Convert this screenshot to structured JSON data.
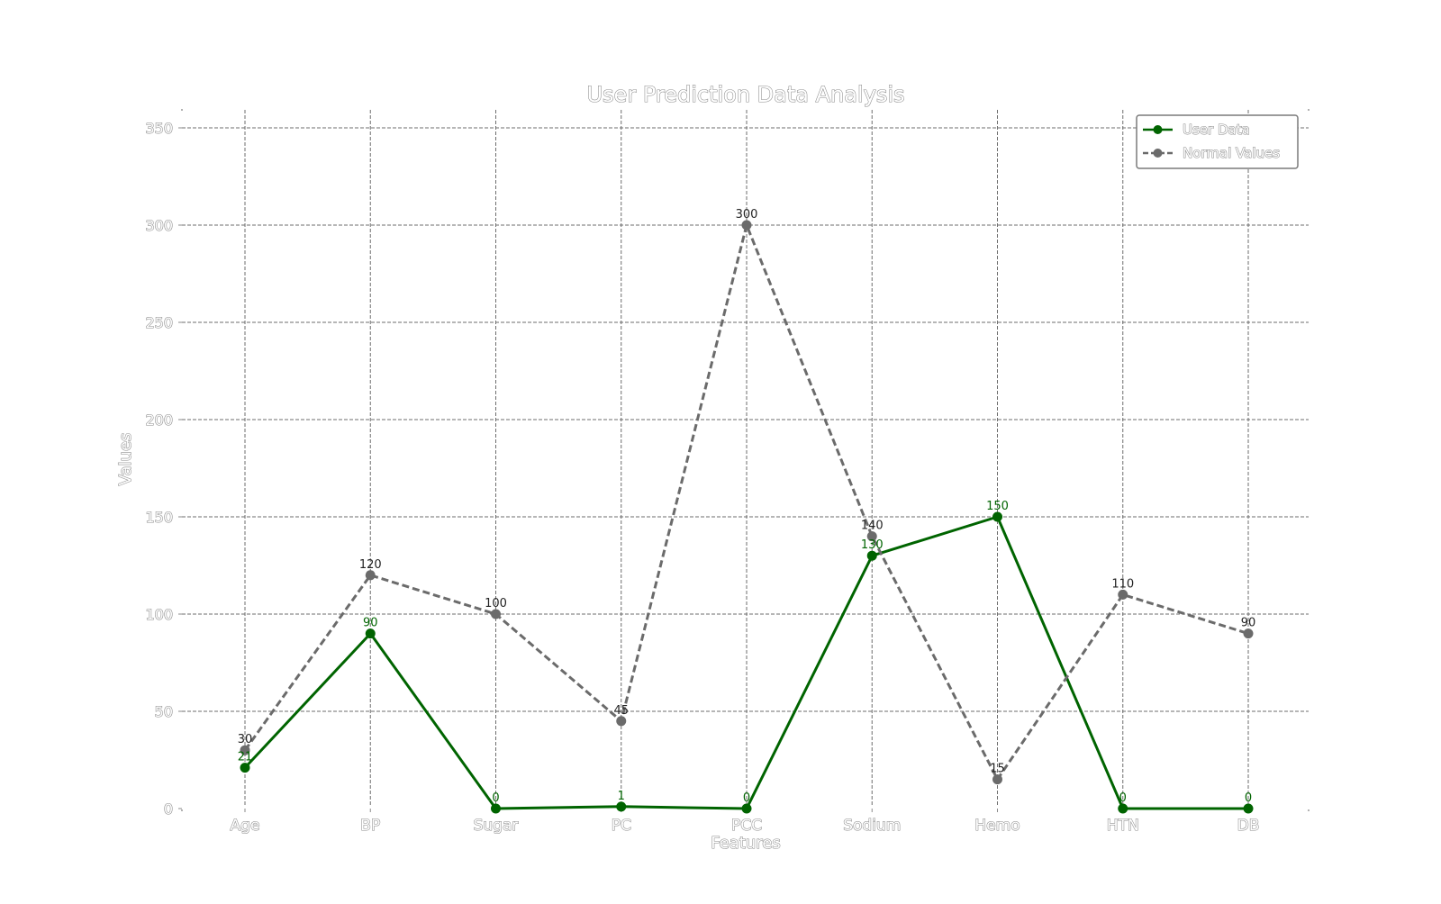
{
  "chart_data": {
    "type": "line",
    "title": "User Prediction Data Analysis",
    "xlabel": "Features",
    "ylabel": "Values",
    "categories": [
      "Age",
      "BP",
      "Sugar",
      "PC",
      "PCC",
      "Sodium",
      "Hemo",
      "HTN",
      "DB"
    ],
    "ylim": [
      0,
      350
    ],
    "yticks": [
      0,
      50,
      100,
      150,
      200,
      250,
      300,
      350
    ],
    "grid": true,
    "legend_position": "top-right",
    "series": [
      {
        "name": "User Data",
        "color": "#006400",
        "line_style": "solid",
        "marker": "circle",
        "values": [
          21,
          90,
          0,
          1,
          0,
          130,
          150,
          0,
          0
        ],
        "labels": [
          "21",
          "90",
          "0",
          "1",
          "0",
          "130",
          "150",
          "0",
          "0"
        ]
      },
      {
        "name": "Normal Values",
        "color": "#6b6b6b",
        "line_style": "dashed",
        "marker": "circle",
        "values": [
          30,
          120,
          100,
          45,
          300,
          140,
          15,
          110,
          90
        ],
        "labels": [
          "30",
          "120",
          "100",
          "45",
          "300",
          "140",
          "15",
          "110",
          "90"
        ]
      }
    ]
  }
}
